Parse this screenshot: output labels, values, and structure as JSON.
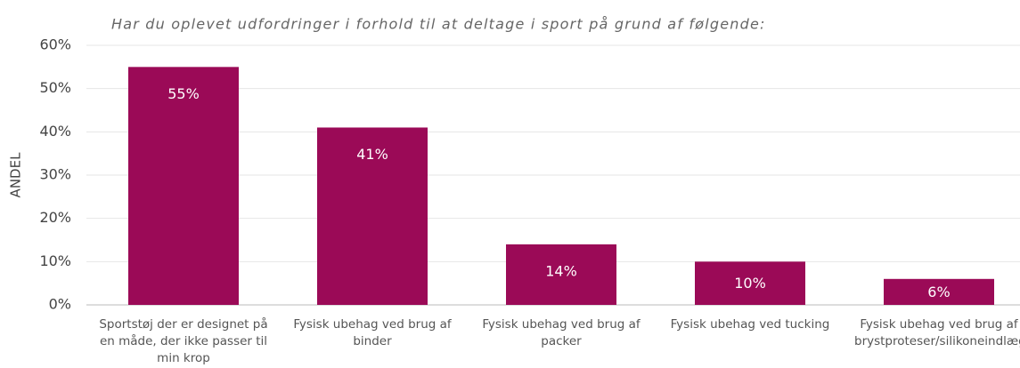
{
  "chart_data": {
    "type": "bar",
    "title": "Har du oplevet udfordringer i forhold til at deltage i sport på grund af følgende:",
    "y_label": "ANDEL",
    "categories": [
      "Sportstøj der er designet på en måde, der ikke passer til min krop",
      "Fysisk ubehag ved brug af binder",
      "Fysisk ubehag ved brug af packer",
      "Fysisk ubehag ved tucking",
      "Fysisk ubehag ved brug af brystproteser/silikoneindlæg"
    ],
    "values": [
      55,
      41,
      14,
      10,
      6
    ],
    "value_labels": [
      "55%",
      "41%",
      "14%",
      "10%",
      "6%"
    ],
    "color": "#9b0a57",
    "ylim": [
      0,
      60
    ],
    "yticks": [
      {
        "value": 0,
        "label": "0%"
      },
      {
        "value": 10,
        "label": "10%"
      },
      {
        "value": 20,
        "label": "20%"
      },
      {
        "value": 30,
        "label": "30%"
      },
      {
        "value": 40,
        "label": "40%"
      },
      {
        "value": 50,
        "label": "50%"
      },
      {
        "value": 60,
        "label": "60%"
      }
    ],
    "grid": true
  }
}
